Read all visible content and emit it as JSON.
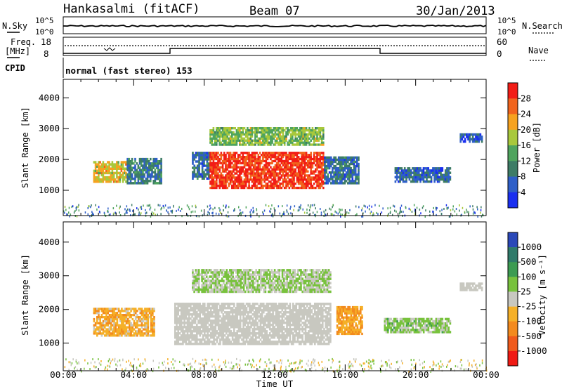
{
  "header": {
    "station": "Hankasalmi (fitACF)",
    "beam": "Beam 07",
    "date": "30/Jan/2013"
  },
  "strip": {
    "nsky_label": "N.Sky",
    "nsearch_label": "N.Search",
    "noise_ticks_left": [
      "10^5",
      "10^0"
    ],
    "noise_ticks_right": [
      "10^5",
      "10^0"
    ],
    "freq_label_line1": "Freq.",
    "freq_label_line2": "[MHz]",
    "freq_ticks": [
      "18",
      "8"
    ],
    "nave_label": "Nave",
    "nave_ticks": [
      "60",
      "0"
    ],
    "cpid_label": "CPID",
    "cpid_text": "normal (fast stereo) 153"
  },
  "colors": {
    "power": [
      "#1a2ff0",
      "#2e5fc8",
      "#3d7c66",
      "#4fa45e",
      "#a8c83c",
      "#f6a21f",
      "#f1641d",
      "#f21d16"
    ],
    "velocity": [
      "#2a48b8",
      "#2f7a6a",
      "#3c9b52",
      "#78c23d",
      "#c8c8c0",
      "#f5b028",
      "#f38a1e",
      "#f05a1c",
      "#f01a14"
    ],
    "ground_scatter": "#c8c8c0"
  },
  "chart_data": [
    {
      "type": "heatmap",
      "title": "",
      "xlabel": "Time UT",
      "ylabel": "Slant Range [km]",
      "x_range_hours": [
        0,
        24
      ],
      "y_range_km": [
        180,
        4600
      ],
      "x_ticks": [
        "00:00",
        "04:00",
        "08:00",
        "12:00",
        "16:00",
        "20:00",
        "00:00"
      ],
      "y_ticks": [
        "1000",
        "2000",
        "3000",
        "4000"
      ],
      "colorbar_label": "Power [dB]",
      "colorbar_ticks": [
        "4",
        "8",
        "12",
        "16",
        "20",
        "24",
        "28"
      ],
      "colorbar_range": [
        0,
        32
      ],
      "echo_regions": [
        {
          "t": [
            1.7,
            3.6
          ],
          "r": [
            1250,
            1950
          ],
          "value": 20
        },
        {
          "t": [
            3.6,
            5.6
          ],
          "r": [
            1200,
            2050
          ],
          "value": 9
        },
        {
          "t": [
            7.3,
            8.3
          ],
          "r": [
            1350,
            2250
          ],
          "value": 8
        },
        {
          "t": [
            8.3,
            14.8
          ],
          "r": [
            1050,
            2250
          ],
          "value": 29
        },
        {
          "t": [
            8.3,
            14.8
          ],
          "r": [
            2450,
            3050
          ],
          "value": 16
        },
        {
          "t": [
            14.8,
            16.8
          ],
          "r": [
            1200,
            2100
          ],
          "value": 8
        },
        {
          "t": [
            18.8,
            22.0
          ],
          "r": [
            1250,
            1750
          ],
          "value": 7
        },
        {
          "t": [
            22.5,
            23.8
          ],
          "r": [
            2550,
            2850
          ],
          "value": 6
        }
      ]
    },
    {
      "type": "heatmap",
      "title": "",
      "xlabel": "Time UT",
      "ylabel": "Slant Range [km]",
      "x_range_hours": [
        0,
        24
      ],
      "y_range_km": [
        180,
        4600
      ],
      "x_ticks": [
        "00:00",
        "04:00",
        "08:00",
        "12:00",
        "16:00",
        "20:00",
        "00:00"
      ],
      "y_ticks": [
        "1000",
        "2000",
        "3000",
        "4000"
      ],
      "colorbar_label": "Velocity [m s⁻¹]",
      "colorbar_ticks": [
        "1000",
        "500",
        "100",
        "25",
        "-25",
        "-100",
        "-500",
        "-1000"
      ],
      "colorbar_range": [
        -1250,
        1250
      ],
      "echo_regions": [
        {
          "t": [
            1.7,
            5.2
          ],
          "r": [
            1200,
            2050
          ],
          "value": -300
        },
        {
          "t": [
            6.3,
            15.2
          ],
          "r": [
            950,
            2200
          ],
          "value": 0,
          "ground_scatter": true
        },
        {
          "t": [
            7.3,
            15.2
          ],
          "r": [
            2500,
            3200
          ],
          "value": 150
        },
        {
          "t": [
            15.5,
            17.0
          ],
          "r": [
            1250,
            2100
          ],
          "value": -400
        },
        {
          "t": [
            18.2,
            22.0
          ],
          "r": [
            1300,
            1750
          ],
          "value": 200
        },
        {
          "t": [
            22.5,
            23.8
          ],
          "r": [
            2550,
            2800
          ],
          "value": 0,
          "ground_scatter": true
        }
      ]
    }
  ]
}
